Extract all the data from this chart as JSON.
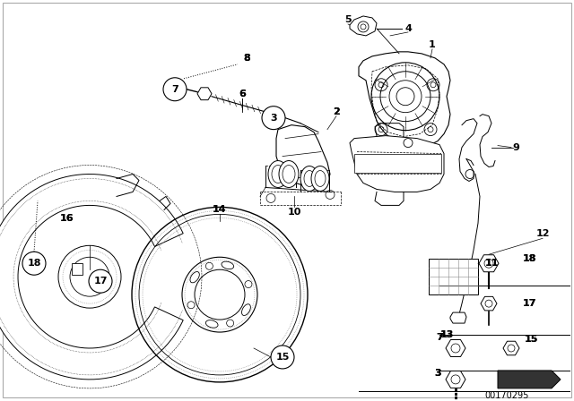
{
  "bg": "#ffffff",
  "fg": "#000000",
  "lgray": "#888888",
  "border": "#aaaaaa",
  "fig_w": 6.4,
  "fig_h": 4.48,
  "dpi": 100,
  "ref_id": "00170295"
}
